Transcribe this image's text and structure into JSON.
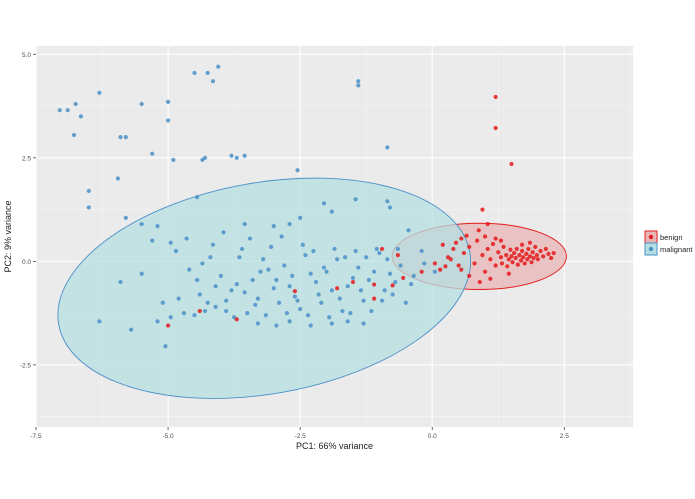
{
  "chart_data": {
    "type": "scatter",
    "title": "",
    "xlabel": "PC1: 66% variance",
    "ylabel": "PC2: 9% variance",
    "xlim": [
      -7.5,
      3.8
    ],
    "ylim": [
      -4.0,
      5.2
    ],
    "xticks": [
      -7.5,
      -5.0,
      -2.5,
      0.0,
      2.5
    ],
    "xtick_labels": [
      "-7.5",
      "-5.0",
      "-2.5",
      "0.0",
      "2.5"
    ],
    "yticks": [
      -2.5,
      0.0,
      2.5,
      5.0
    ],
    "ytick_labels": [
      "-2.5",
      "0.0",
      "2.5",
      "5.0"
    ],
    "grid": true,
    "legend_position": "right",
    "series": [
      {
        "name": "benign",
        "color": "#e41a1c",
        "ellipse_fill": "#e8b5b5",
        "ellipse": {
          "cx": 0.89,
          "cy": 0.12,
          "rx": 1.65,
          "ry": 0.8,
          "angle_deg": 0
        },
        "points": [
          [
            1.2,
            3.97
          ],
          [
            1.2,
            3.22
          ],
          [
            1.5,
            2.35
          ],
          [
            0.95,
            1.25
          ],
          [
            1.05,
            0.9
          ],
          [
            0.88,
            0.75
          ],
          [
            0.55,
            0.55
          ],
          [
            0.4,
            0.3
          ],
          [
            0.3,
            0.1
          ],
          [
            0.25,
            -0.12
          ],
          [
            -0.2,
            -0.25
          ],
          [
            -0.55,
            -0.4
          ],
          [
            -0.75,
            -0.58
          ],
          [
            -1.1,
            -0.9
          ],
          [
            -1.1,
            -0.56
          ],
          [
            -1.5,
            -0.5
          ],
          [
            -1.8,
            -0.65
          ],
          [
            -2.6,
            -0.72
          ],
          [
            -3.7,
            -1.4
          ],
          [
            -4.4,
            -1.2
          ],
          [
            -5.0,
            -1.55
          ],
          [
            -0.95,
            0.3
          ],
          [
            -0.65,
            0.15
          ],
          [
            0.15,
            -0.2
          ],
          [
            0.35,
            0.05
          ],
          [
            0.5,
            -0.1
          ],
          [
            0.6,
            0.2
          ],
          [
            0.7,
            0.35
          ],
          [
            0.8,
            -0.05
          ],
          [
            0.85,
            0.5
          ],
          [
            0.95,
            0.15
          ],
          [
            1.0,
            -0.25
          ],
          [
            1.05,
            0.3
          ],
          [
            1.1,
            0.05
          ],
          [
            1.15,
            0.42
          ],
          [
            1.2,
            -0.1
          ],
          [
            1.25,
            0.22
          ],
          [
            1.3,
            0.1
          ],
          [
            1.32,
            -0.05
          ],
          [
            1.35,
            0.35
          ],
          [
            1.4,
            0.15
          ],
          [
            1.42,
            -0.12
          ],
          [
            1.45,
            0.05
          ],
          [
            1.48,
            0.28
          ],
          [
            1.5,
            0.12
          ],
          [
            1.52,
            -0.02
          ],
          [
            1.55,
            0.2
          ],
          [
            1.58,
            0.08
          ],
          [
            1.6,
            0.3
          ],
          [
            1.62,
            -0.08
          ],
          [
            1.65,
            0.15
          ],
          [
            1.68,
            0.02
          ],
          [
            1.7,
            0.25
          ],
          [
            1.72,
            0.1
          ],
          [
            1.75,
            -0.05
          ],
          [
            1.78,
            0.18
          ],
          [
            1.8,
            0.05
          ],
          [
            1.82,
            0.3
          ],
          [
            1.85,
            0.12
          ],
          [
            1.88,
            -0.02
          ],
          [
            1.9,
            0.22
          ],
          [
            1.92,
            0.08
          ],
          [
            1.95,
            0.35
          ],
          [
            1.98,
            0.15
          ],
          [
            2.0,
            0.05
          ],
          [
            2.05,
            0.25
          ],
          [
            2.1,
            0.12
          ],
          [
            2.15,
            0.3
          ],
          [
            2.2,
            0.18
          ],
          [
            2.25,
            0.08
          ],
          [
            1.0,
            0.6
          ],
          [
            1.2,
            0.55
          ],
          [
            0.7,
            -0.35
          ],
          [
            0.9,
            -0.5
          ],
          [
            1.1,
            -0.42
          ],
          [
            0.55,
            -0.2
          ],
          [
            0.45,
            0.45
          ],
          [
            1.3,
            0.5
          ],
          [
            1.45,
            -0.3
          ],
          [
            0.65,
            0.62
          ],
          [
            1.7,
            0.4
          ],
          [
            1.85,
            0.45
          ],
          [
            2.3,
            0.2
          ],
          [
            0.2,
            0.4
          ],
          [
            0.05,
            -0.05
          ]
        ]
      },
      {
        "name": "malignant",
        "color": "#4a90c8",
        "ellipse_fill": "#b6dfe2",
        "ellipse": {
          "cx": -3.18,
          "cy": -0.65,
          "rx": 3.95,
          "ry": 2.55,
          "angle_deg": -10
        },
        "points": [
          [
            -7.05,
            3.65
          ],
          [
            -6.9,
            3.65
          ],
          [
            -6.75,
            3.8
          ],
          [
            -6.65,
            3.5
          ],
          [
            -6.78,
            3.05
          ],
          [
            -6.3,
            4.07
          ],
          [
            -5.5,
            3.8
          ],
          [
            -4.25,
            4.55
          ],
          [
            -4.5,
            4.55
          ],
          [
            -4.05,
            4.7
          ],
          [
            -4.15,
            4.35
          ],
          [
            -5.0,
            3.85
          ],
          [
            -5.0,
            3.4
          ],
          [
            -1.4,
            4.35
          ],
          [
            -1.4,
            4.25
          ],
          [
            -5.8,
            3.0
          ],
          [
            -5.9,
            3.0
          ],
          [
            -5.3,
            2.6
          ],
          [
            -4.9,
            2.45
          ],
          [
            -4.35,
            2.45
          ],
          [
            -4.3,
            2.5
          ],
          [
            -3.8,
            2.55
          ],
          [
            -3.7,
            2.5
          ],
          [
            -3.55,
            2.55
          ],
          [
            -2.55,
            2.2
          ],
          [
            -0.85,
            2.75
          ],
          [
            -6.5,
            1.7
          ],
          [
            -6.5,
            1.3
          ],
          [
            -5.95,
            2.0
          ],
          [
            -5.8,
            1.05
          ],
          [
            -5.5,
            0.9
          ],
          [
            -5.2,
            0.85
          ],
          [
            -4.95,
            0.45
          ],
          [
            -4.45,
            1.55
          ],
          [
            -3.55,
            0.9
          ],
          [
            -3.0,
            0.85
          ],
          [
            -2.7,
            0.9
          ],
          [
            -2.5,
            1.05
          ],
          [
            -2.05,
            1.4
          ],
          [
            -1.9,
            1.2
          ],
          [
            -1.45,
            1.5
          ],
          [
            -0.85,
            1.45
          ],
          [
            -0.8,
            1.3
          ],
          [
            -0.45,
            0.75
          ],
          [
            -6.3,
            -1.45
          ],
          [
            -5.9,
            -0.5
          ],
          [
            -5.7,
            -1.65
          ],
          [
            -5.2,
            -1.45
          ],
          [
            -5.05,
            -2.05
          ],
          [
            -4.95,
            -1.35
          ],
          [
            -4.45,
            -0.45
          ],
          [
            -4.25,
            -1.0
          ],
          [
            -4.1,
            -1.1
          ],
          [
            -3.9,
            -1.2
          ],
          [
            -3.7,
            -0.55
          ],
          [
            -3.5,
            -1.25
          ],
          [
            -3.3,
            -0.9
          ],
          [
            -3.1,
            -0.2
          ],
          [
            -2.9,
            -1.0
          ],
          [
            -2.7,
            -0.6
          ],
          [
            -2.5,
            -1.15
          ],
          [
            -2.3,
            -0.3
          ],
          [
            -2.1,
            -1.0
          ],
          [
            -1.9,
            -0.7
          ],
          [
            -1.7,
            -1.2
          ],
          [
            -1.5,
            -0.4
          ],
          [
            -1.3,
            -0.95
          ],
          [
            -1.1,
            -0.25
          ],
          [
            -0.9,
            -0.7
          ],
          [
            -0.7,
            -0.5
          ],
          [
            -0.5,
            -1.0
          ],
          [
            -4.6,
            -0.2
          ],
          [
            -4.4,
            -0.8
          ],
          [
            -4.2,
            0.1
          ],
          [
            -4.0,
            -0.35
          ],
          [
            -3.8,
            -0.7
          ],
          [
            -3.6,
            0.3
          ],
          [
            -3.4,
            -0.45
          ],
          [
            -3.2,
            0.05
          ],
          [
            -3.0,
            -0.65
          ],
          [
            -2.8,
            -0.1
          ],
          [
            -2.6,
            -0.85
          ],
          [
            -2.4,
            0.15
          ],
          [
            -2.2,
            -0.5
          ],
          [
            -2.0,
            -0.25
          ],
          [
            -1.8,
            0.05
          ],
          [
            -1.6,
            -0.6
          ],
          [
            -1.4,
            -0.15
          ],
          [
            -1.2,
            -0.45
          ],
          [
            -1.0,
            0.2
          ],
          [
            -0.8,
            -0.3
          ],
          [
            -0.6,
            -0.1
          ],
          [
            -0.4,
            -0.55
          ],
          [
            -0.2,
            0.25
          ],
          [
            -4.8,
            -0.9
          ],
          [
            -4.7,
            -1.25
          ],
          [
            -4.5,
            -1.3
          ],
          [
            -4.3,
            -1.2
          ],
          [
            -4.1,
            -0.6
          ],
          [
            -3.9,
            -0.95
          ],
          [
            -3.75,
            -1.35
          ],
          [
            -3.55,
            -0.75
          ],
          [
            -3.35,
            -1.05
          ],
          [
            -3.15,
            -1.3
          ],
          [
            -2.95,
            -0.45
          ],
          [
            -2.75,
            -1.25
          ],
          [
            -2.55,
            -0.95
          ],
          [
            -2.35,
            -1.3
          ],
          [
            -2.15,
            -0.8
          ],
          [
            -1.95,
            -1.35
          ],
          [
            -1.75,
            -0.9
          ],
          [
            -1.55,
            -1.25
          ],
          [
            -1.35,
            -0.7
          ],
          [
            -1.15,
            -1.2
          ],
          [
            -0.95,
            -0.95
          ],
          [
            -0.75,
            -0.8
          ],
          [
            -5.5,
            -0.3
          ],
          [
            -5.3,
            0.5
          ],
          [
            -5.1,
            -1.0
          ],
          [
            -4.85,
            0.25
          ],
          [
            -4.65,
            0.55
          ],
          [
            -4.35,
            -0.05
          ],
          [
            -4.15,
            0.4
          ],
          [
            -3.95,
            0.7
          ],
          [
            -3.65,
            0.1
          ],
          [
            -3.45,
            0.55
          ],
          [
            -3.25,
            -0.25
          ],
          [
            -3.05,
            0.35
          ],
          [
            -2.85,
            0.6
          ],
          [
            -2.65,
            -0.35
          ],
          [
            -2.45,
            0.4
          ],
          [
            -2.25,
            0.25
          ],
          [
            -2.05,
            -0.15
          ],
          [
            -1.85,
            0.3
          ],
          [
            -1.65,
            0.1
          ],
          [
            -1.45,
            0.25
          ],
          [
            -1.25,
            0.1
          ],
          [
            -1.05,
            0.3
          ],
          [
            -0.85,
            0.05
          ],
          [
            -0.65,
            0.3
          ],
          [
            -3.3,
            -1.5
          ],
          [
            -2.95,
            -1.55
          ],
          [
            -2.7,
            -1.45
          ],
          [
            -2.3,
            -1.55
          ],
          [
            -1.9,
            -1.5
          ],
          [
            -1.6,
            -1.45
          ],
          [
            -1.3,
            -1.5
          ],
          [
            -0.35,
            -0.35
          ],
          [
            -0.15,
            -0.05
          ],
          [
            0.05,
            -0.25
          ]
        ]
      }
    ]
  },
  "legend": {
    "items": [
      {
        "label": "benign",
        "color": "#e41a1c",
        "fill": "#e8b5b5"
      },
      {
        "label": "malignant",
        "color": "#4a90c8",
        "fill": "#b6dfe2"
      }
    ]
  }
}
